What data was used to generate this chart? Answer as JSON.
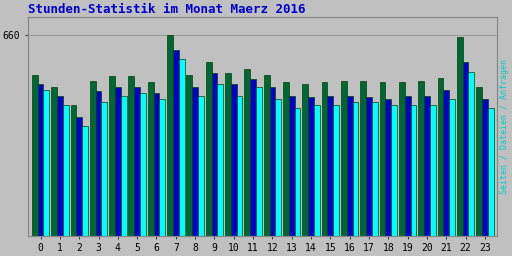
{
  "title": "Stunden-Statistik im Monat Maerz 2016",
  "title_color": "#0000CC",
  "ylabel": "Seiten / Dateien / Anfragen",
  "ylabel_color": "#00CCCC",
  "xlabel_labels": [
    "0",
    "1",
    "2",
    "3",
    "4",
    "5",
    "6",
    "7",
    "8",
    "9",
    "10",
    "11",
    "12",
    "13",
    "14",
    "15",
    "16",
    "17",
    "18",
    "19",
    "20",
    "21",
    "22",
    "23"
  ],
  "ytick_vals": [
    660
  ],
  "background_color": "#C0C0C0",
  "plot_bg_color": "#C0C0C0",
  "bar_colors": [
    "#006633",
    "#0000CC",
    "#00FFFF"
  ],
  "bar_edgecolor": "#004400",
  "bar_width": 0.3,
  "green_values": [
    530,
    490,
    430,
    510,
    525,
    525,
    505,
    660,
    530,
    570,
    535,
    550,
    530,
    505,
    500,
    505,
    510,
    510,
    505,
    505,
    510,
    520,
    655,
    490
  ],
  "blue_values": [
    500,
    460,
    390,
    475,
    490,
    490,
    470,
    610,
    490,
    535,
    500,
    515,
    490,
    460,
    455,
    460,
    460,
    455,
    450,
    460,
    460,
    480,
    570,
    450
  ],
  "cyan_values": [
    480,
    430,
    360,
    440,
    460,
    470,
    450,
    580,
    460,
    500,
    460,
    490,
    450,
    420,
    430,
    430,
    440,
    440,
    430,
    430,
    430,
    450,
    540,
    420
  ],
  "ylim": [
    0,
    720
  ],
  "figsize": [
    5.12,
    2.56
  ],
  "dpi": 100
}
